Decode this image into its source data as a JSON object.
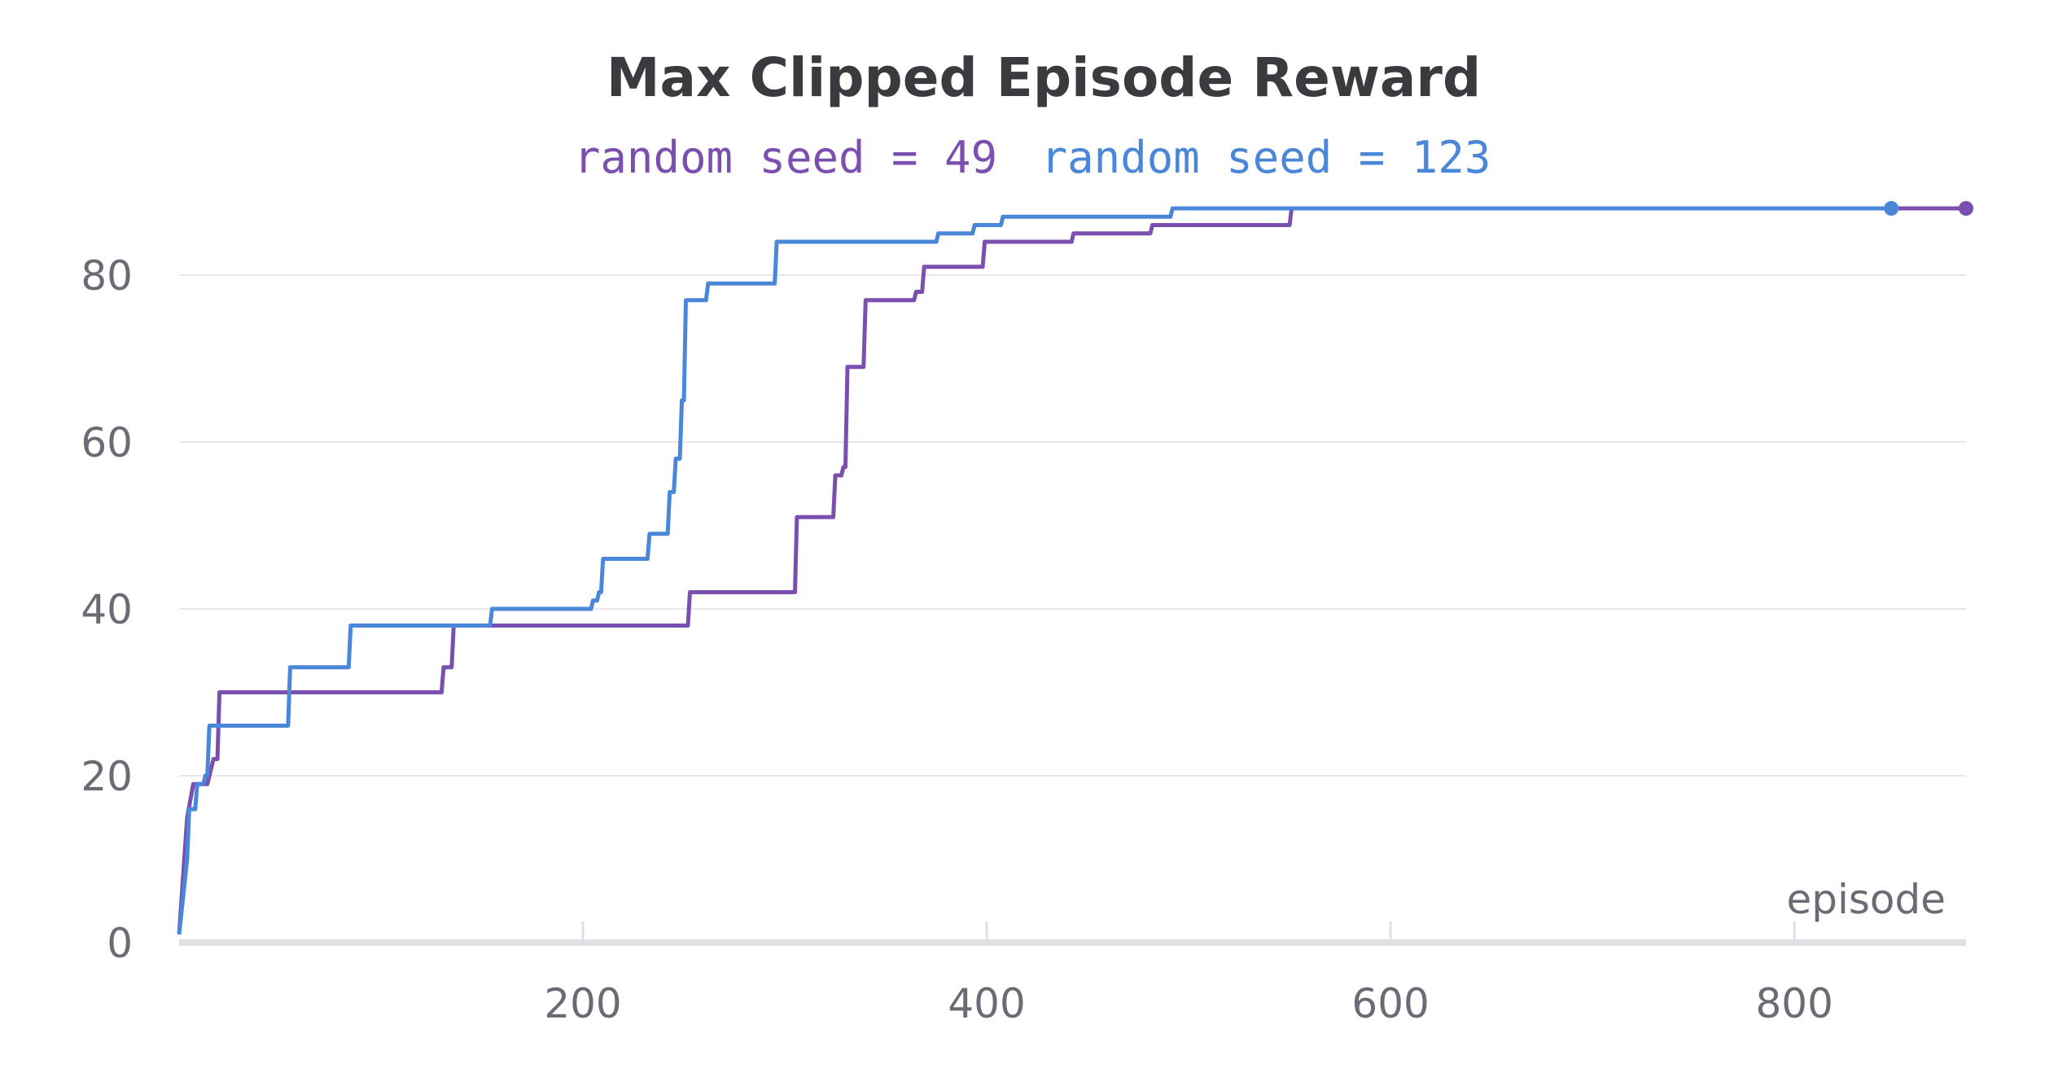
{
  "chart_data": {
    "type": "line",
    "title": "Max Clipped Episode Reward",
    "xlabel": "episode",
    "ylabel": "",
    "xlim": [
      0,
      885
    ],
    "ylim": [
      0,
      90
    ],
    "x_ticks": [
      200,
      400,
      600,
      800
    ],
    "y_ticks": [
      0,
      20,
      40,
      60,
      80
    ],
    "grid": "horizontal",
    "legend_placement": "top",
    "series": [
      {
        "name": "random seed = 49",
        "color": "#7b4fb0",
        "points": [
          [
            0,
            1
          ],
          [
            4,
            15
          ],
          [
            7,
            19
          ],
          [
            14,
            19
          ],
          [
            17,
            22
          ],
          [
            19,
            22
          ],
          [
            20,
            30
          ],
          [
            130,
            30
          ],
          [
            131,
            33
          ],
          [
            135,
            33
          ],
          [
            136,
            38
          ],
          [
            252,
            38
          ],
          [
            253,
            42
          ],
          [
            305,
            42
          ],
          [
            306,
            51
          ],
          [
            324,
            51
          ],
          [
            325,
            56
          ],
          [
            328,
            56
          ],
          [
            329,
            57
          ],
          [
            330,
            57
          ],
          [
            331,
            69
          ],
          [
            339,
            69
          ],
          [
            340,
            77
          ],
          [
            364,
            77
          ],
          [
            365,
            78
          ],
          [
            368,
            78
          ],
          [
            369,
            81
          ],
          [
            398,
            81
          ],
          [
            399,
            84
          ],
          [
            442,
            84
          ],
          [
            443,
            85
          ],
          [
            481,
            85
          ],
          [
            482,
            86
          ],
          [
            550,
            86
          ],
          [
            551,
            88
          ],
          [
            885,
            88
          ]
        ]
      },
      {
        "name": "random seed = 123",
        "color": "#4a87d8",
        "points": [
          [
            0,
            1
          ],
          [
            4,
            10
          ],
          [
            5,
            16
          ],
          [
            8,
            16
          ],
          [
            9,
            19
          ],
          [
            12,
            19
          ],
          [
            13,
            20
          ],
          [
            14,
            20
          ],
          [
            15,
            26
          ],
          [
            54,
            26
          ],
          [
            55,
            33
          ],
          [
            84,
            33
          ],
          [
            85,
            38
          ],
          [
            154,
            38
          ],
          [
            155,
            40
          ],
          [
            204,
            40
          ],
          [
            205,
            41
          ],
          [
            207,
            41
          ],
          [
            208,
            42
          ],
          [
            209,
            42
          ],
          [
            210,
            46
          ],
          [
            232,
            46
          ],
          [
            233,
            49
          ],
          [
            242,
            49
          ],
          [
            243,
            54
          ],
          [
            245,
            54
          ],
          [
            246,
            58
          ],
          [
            248,
            58
          ],
          [
            249,
            65
          ],
          [
            250,
            65
          ],
          [
            251,
            77
          ],
          [
            261,
            77
          ],
          [
            262,
            79
          ],
          [
            295,
            79
          ],
          [
            296,
            84
          ],
          [
            375,
            84
          ],
          [
            376,
            85
          ],
          [
            393,
            85
          ],
          [
            394,
            86
          ],
          [
            407,
            86
          ],
          [
            408,
            87
          ],
          [
            491,
            87
          ],
          [
            492,
            88
          ],
          [
            848,
            88
          ]
        ]
      }
    ]
  }
}
